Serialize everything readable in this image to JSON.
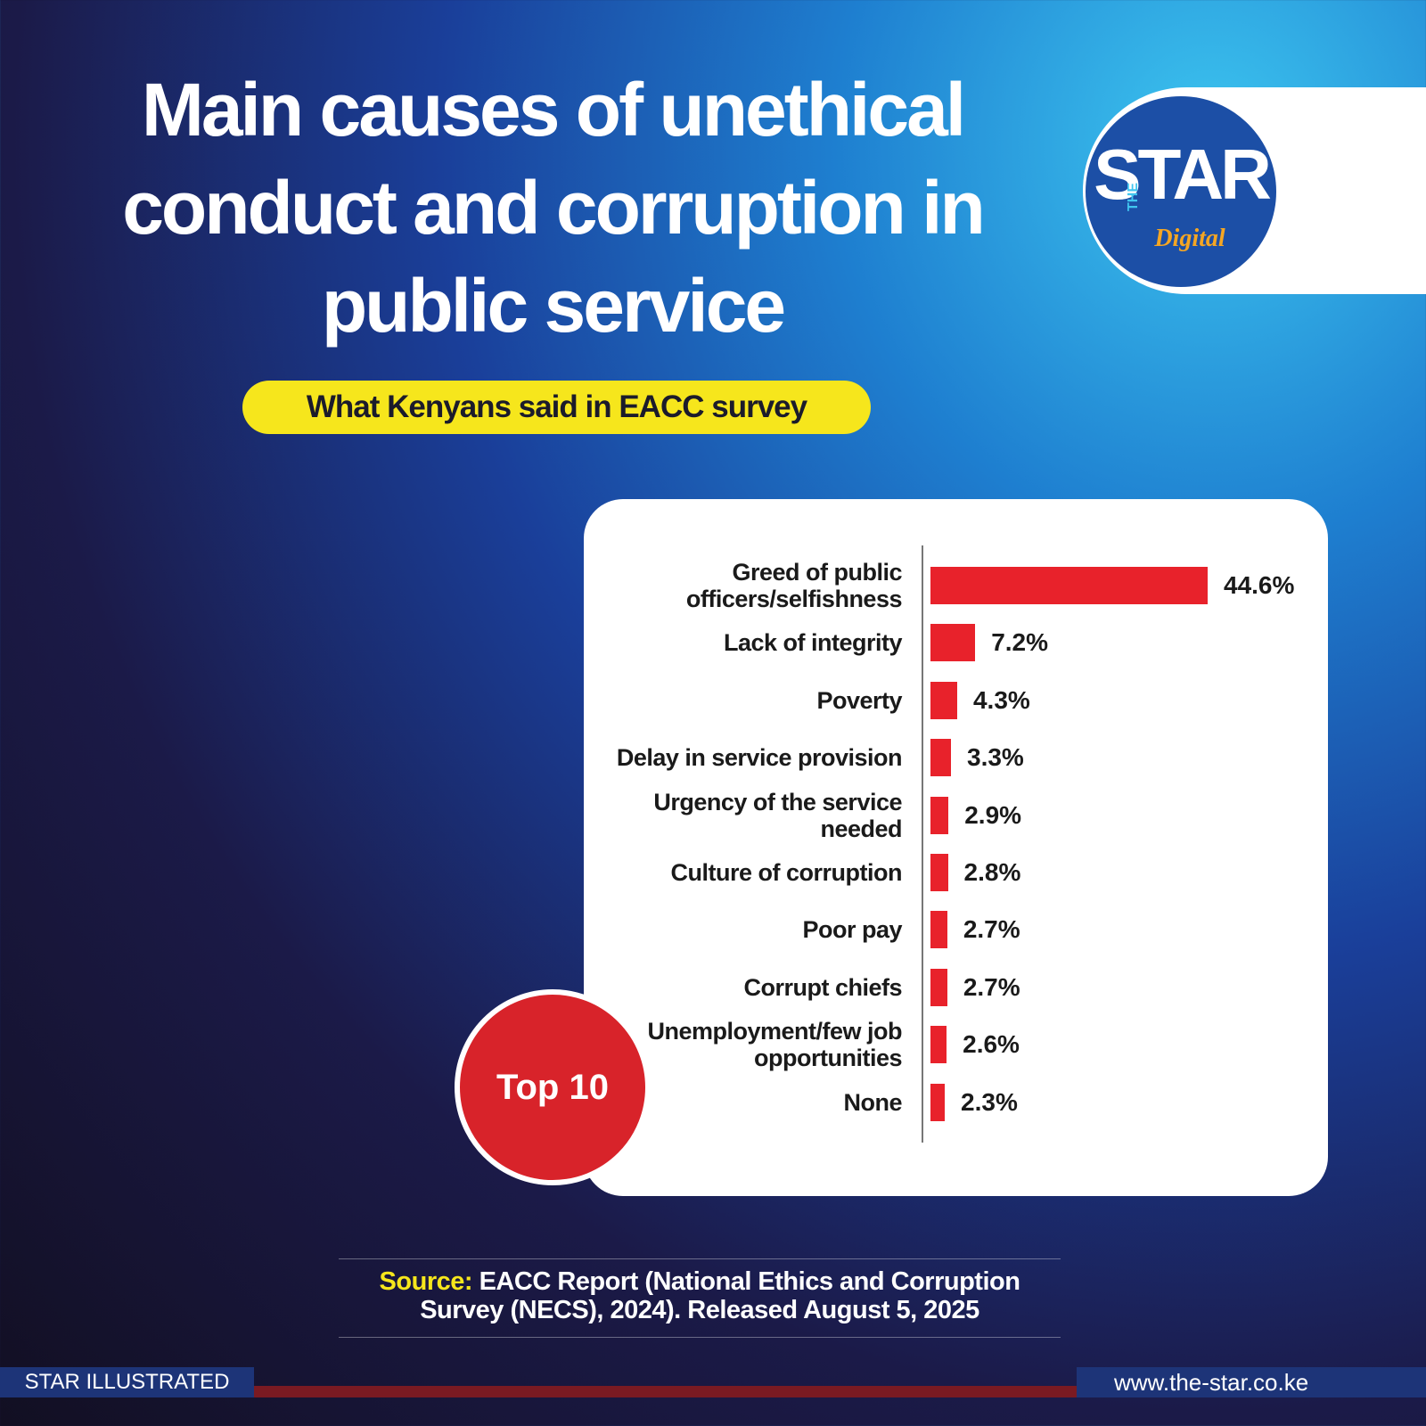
{
  "chart_data": {
    "type": "hbar",
    "title": "Main causes of unethical conduct and corruption in public service",
    "subtitle": "What Kenyans said in EACC survey",
    "categories": [
      "Greed of public officers/selfishness",
      "Lack of integrity",
      "Poverty",
      "Delay in service provision",
      "Urgency of the service needed",
      "Culture of corruption",
      "Poor pay",
      "Corrupt chiefs",
      "Unemployment/few job opportunities",
      "None"
    ],
    "values": [
      44.6,
      7.2,
      4.3,
      3.3,
      2.9,
      2.8,
      2.7,
      2.7,
      2.6,
      2.3
    ],
    "value_labels": [
      "44.6%",
      "7.2%",
      "4.3%",
      "3.3%",
      "2.9%",
      "2.8%",
      "2.7%",
      "2.7%",
      "2.6%",
      "2.3%"
    ],
    "color": "#e8222b",
    "badge": "Top 10",
    "source_label": "Source:",
    "source": "EACC Report (National Ethics and Corruption Survey (NECS), 2024). Released August 5, 2025",
    "logo": {
      "the": "THE",
      "star": "STAR",
      "digital": "Digital"
    },
    "footer": {
      "left": "STAR ILLUSTRATED",
      "right": "www.the-star.co.ke"
    }
  }
}
